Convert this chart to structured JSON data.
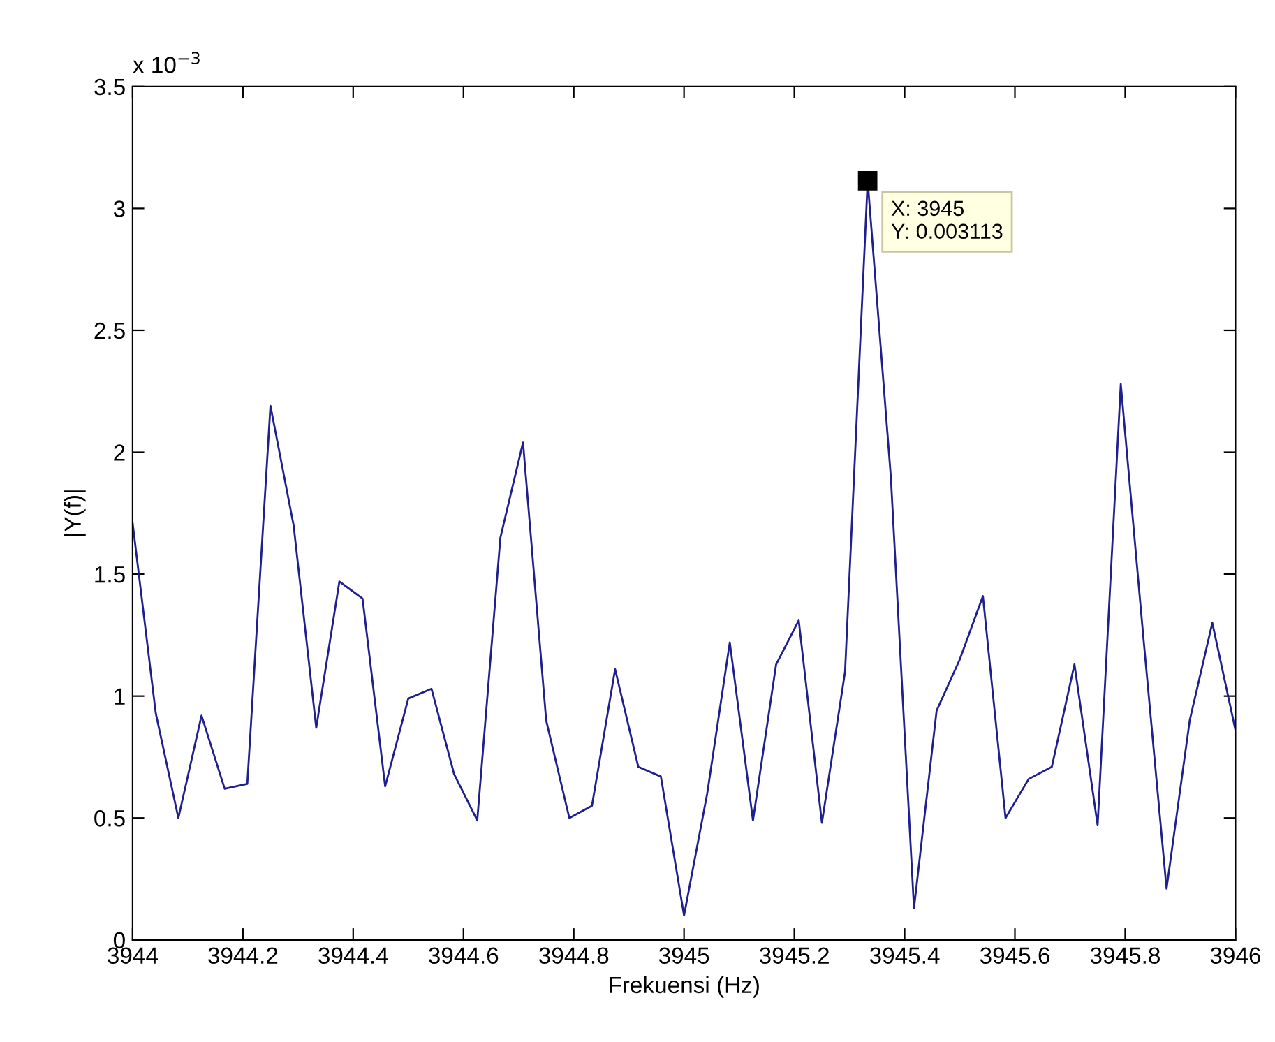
{
  "chart_data": {
    "type": "line",
    "xlabel": "Frekuensi (Hz)",
    "ylabel": "|Y(f)|",
    "x": [
      3944.0,
      3944.042,
      3944.083,
      3944.125,
      3944.167,
      3944.208,
      3944.25,
      3944.292,
      3944.333,
      3944.375,
      3944.417,
      3944.458,
      3944.5,
      3944.542,
      3944.583,
      3944.625,
      3944.667,
      3944.708,
      3944.75,
      3944.792,
      3944.833,
      3944.875,
      3944.917,
      3944.958,
      3945.0,
      3945.042,
      3945.083,
      3945.125,
      3945.167,
      3945.208,
      3945.25,
      3945.292,
      3945.333,
      3945.375,
      3945.417,
      3945.458,
      3945.5,
      3945.542,
      3945.583,
      3945.625,
      3945.667,
      3945.708,
      3945.75,
      3945.792,
      3945.833,
      3945.875,
      3945.917,
      3945.958,
      3946.0
    ],
    "series": [
      {
        "color": "#1f1f8f",
        "values": [
          1.71,
          0.93,
          0.5,
          0.92,
          0.62,
          0.64,
          2.19,
          1.7,
          0.87,
          1.47,
          1.4,
          0.63,
          0.99,
          1.03,
          0.68,
          0.49,
          1.65,
          2.04,
          0.9,
          0.5,
          0.55,
          1.11,
          0.71,
          0.67,
          0.1,
          0.6,
          1.22,
          0.49,
          1.13,
          1.31,
          0.48,
          1.1,
          3.113,
          1.9,
          0.13,
          0.94,
          1.15,
          1.41,
          0.5,
          0.66,
          0.71,
          1.13,
          0.47,
          2.28,
          1.24,
          0.21,
          0.9,
          1.3,
          0.86
        ]
      }
    ],
    "xlim": [
      3944,
      3946
    ],
    "xticks": [
      3944,
      3944.2,
      3944.4,
      3944.6,
      3944.8,
      3945,
      3945.2,
      3945.4,
      3945.6,
      3945.8,
      3946
    ],
    "ylim": [
      0,
      3.5
    ],
    "yticks": [
      0,
      0.5,
      1,
      1.5,
      2,
      2.5,
      3,
      3.5
    ],
    "grid": false,
    "line_style": "solid",
    "marker": "none",
    "annotations": [
      "x 10$^{−3}$",
      {
        "text": "X: 3945\nY: 0.003113",
        "x": 3945.333,
        "y": 3.113
      }
    ]
  }
}
